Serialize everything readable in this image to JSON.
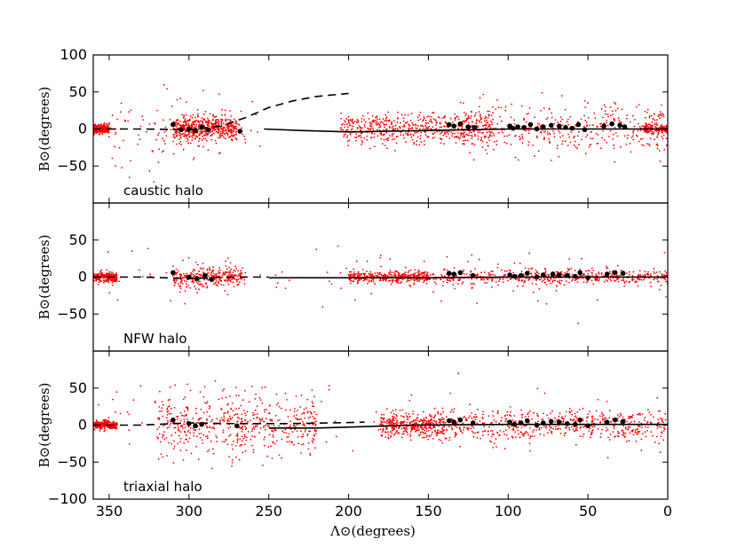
{
  "colors": {
    "sim_points": "#ff0000",
    "obs_points": "#000000",
    "background": "#ffffff",
    "axes": "#000000"
  },
  "chart_data": {
    "type": "scatter",
    "layout": "3 vertically stacked panels, shared x-axis",
    "x_axis": {
      "label": "Λ⊙(degrees)",
      "range": [
        360,
        0
      ],
      "reversed": true,
      "ticks": [
        350,
        300,
        250,
        200,
        150,
        100,
        50,
        0
      ],
      "tick_labels": [
        "350",
        "300",
        "250",
        "200",
        "150",
        "100",
        "50",
        "0"
      ]
    },
    "y_axis": {
      "label": "B⊙(degrees)",
      "range": [
        -100,
        100
      ],
      "ticks": [
        -100,
        -50,
        0,
        50,
        100
      ]
    },
    "grid": false,
    "panels": [
      {
        "label": "caustic halo",
        "ytick_labels": [
          "100",
          "50",
          "0",
          "−50"
        ],
        "ytick_values": [
          100,
          50,
          0,
          -50
        ],
        "series": [
          {
            "type": "points",
            "color": "#ff0000",
            "description_key": "sim",
            "clusters": [
              {
                "x": [
                  350,
                  362
                ],
                "y_sd": 3,
                "n": 320
              },
              {
                "x": [
                  270,
                  310
                ],
                "y_sd": 8,
                "n": 520
              },
              {
                "x": [
                  255,
                  350
                ],
                "y_sd": 25,
                "n": 120
              },
              {
                "x": [
                  110,
                  205
                ],
                "y_sd": 10,
                "n": 560
              },
              {
                "x": [
                  0,
                  130
                ],
                "y_sd": 18,
                "n": 420
              },
              {
                "x": [
                  0,
                  15
                ],
                "y_sd": 3,
                "n": 140
              }
            ]
          },
          {
            "type": "line",
            "style": "dashed",
            "points": [
              [
                360,
                0
              ],
              [
                330,
                0
              ],
              [
                300,
                -1
              ],
              [
                280,
                4
              ],
              [
                265,
                15
              ],
              [
                250,
                29
              ],
              [
                235,
                38
              ],
              [
                220,
                44
              ],
              [
                200,
                48
              ]
            ]
          },
          {
            "type": "line",
            "style": "solid",
            "points": [
              [
                253,
                0
              ],
              [
                230,
                -2
              ],
              [
                200,
                -4
              ],
              [
                150,
                -2
              ],
              [
                100,
                0
              ],
              [
                50,
                0
              ],
              [
                0,
                0
              ]
            ]
          },
          {
            "type": "points",
            "color": "#000000",
            "description_key": "obs",
            "values": [
              [
                310,
                6
              ],
              [
                305,
                -1
              ],
              [
                300,
                0
              ],
              [
                296,
                -2
              ],
              [
                292,
                3
              ],
              [
                288,
                -1
              ],
              [
                268,
                -3
              ],
              [
                137,
                6
              ],
              [
                134,
                4
              ],
              [
                130,
                7
              ],
              [
                125,
                3
              ],
              [
                121,
                2
              ],
              [
                99,
                4
              ],
              [
                97,
                1
              ],
              [
                94,
                3
              ],
              [
                90,
                2
              ],
              [
                86,
                6
              ],
              [
                82,
                0
              ],
              [
                78,
                3
              ],
              [
                73,
                5
              ],
              [
                68,
                4
              ],
              [
                64,
                2
              ],
              [
                60,
                1
              ],
              [
                56,
                6
              ],
              [
                52,
                -1
              ],
              [
                40,
                4
              ],
              [
                35,
                7
              ],
              [
                30,
                5
              ],
              [
                27,
                3
              ]
            ]
          }
        ]
      },
      {
        "label": "NFW halo",
        "ytick_labels": [
          "50",
          "0",
          "−50"
        ],
        "ytick_values": [
          50,
          0,
          -50
        ],
        "series": [
          {
            "type": "points",
            "color": "#ff0000",
            "description_key": "sim",
            "clusters": [
              {
                "x": [
                  345,
                  362
                ],
                "y_sd": 3,
                "n": 300
              },
              {
                "x": [
                  265,
                  310
                ],
                "y_sd": 7,
                "n": 300
              },
              {
                "x": [
                  150,
                  200
                ],
                "y_sd": 4,
                "n": 360
              },
              {
                "x": [
                  0,
                  150
                ],
                "y_sd": 5,
                "n": 520
              },
              {
                "x": [
                  0,
                  360
                ],
                "y_sd": 20,
                "n": 120
              }
            ]
          },
          {
            "type": "line",
            "style": "dashed",
            "points": [
              [
                360,
                0
              ],
              [
                330,
                0
              ],
              [
                300,
                -2
              ],
              [
                270,
                0
              ],
              [
                250,
                0
              ]
            ]
          },
          {
            "type": "line",
            "style": "solid",
            "points": [
              [
                250,
                -1
              ],
              [
                200,
                -1
              ],
              [
                150,
                -1
              ],
              [
                100,
                0
              ],
              [
                0,
                0
              ]
            ]
          },
          {
            "type": "points",
            "color": "#000000",
            "description_key": "obs",
            "values": [
              [
                310,
                6
              ],
              [
                300,
                0
              ],
              [
                295,
                -2
              ],
              [
                290,
                2
              ],
              [
                286,
                -3
              ],
              [
                137,
                5
              ],
              [
                134,
                4
              ],
              [
                130,
                6
              ],
              [
                122,
                2
              ],
              [
                99,
                3
              ],
              [
                96,
                1
              ],
              [
                92,
                2
              ],
              [
                88,
                5
              ],
              [
                82,
                0
              ],
              [
                78,
                3
              ],
              [
                72,
                4
              ],
              [
                68,
                3
              ],
              [
                63,
                2
              ],
              [
                58,
                1
              ],
              [
                55,
                6
              ],
              [
                50,
                -1
              ],
              [
                38,
                4
              ],
              [
                33,
                6
              ],
              [
                28,
                5
              ]
            ]
          }
        ]
      },
      {
        "label": "triaxial halo",
        "ytick_labels": [
          "50",
          "0",
          "−50",
          "−100"
        ],
        "ytick_values": [
          50,
          0,
          -50,
          -100
        ],
        "series": [
          {
            "type": "points",
            "color": "#ff0000",
            "description_key": "sim",
            "clusters": [
              {
                "x": [
                  345,
                  362
                ],
                "y_sd": 3,
                "n": 300
              },
              {
                "x": [
                  220,
                  320
                ],
                "y_sd": 20,
                "n": 520
              },
              {
                "x": [
                  140,
                  180
                ],
                "y_sd": 8,
                "n": 400
              },
              {
                "x": [
                  0,
                  140
                ],
                "y_sd": 10,
                "n": 520
              },
              {
                "x": [
                  0,
                  360
                ],
                "y_sd": 25,
                "n": 120
              }
            ]
          },
          {
            "type": "line",
            "style": "dashed",
            "points": [
              [
                360,
                0
              ],
              [
                330,
                0
              ],
              [
                300,
                3
              ],
              [
                270,
                2
              ],
              [
                240,
                2
              ],
              [
                210,
                3
              ],
              [
                190,
                4
              ]
            ]
          },
          {
            "type": "line",
            "style": "solid",
            "points": [
              [
                250,
                -4
              ],
              [
                220,
                -4
              ],
              [
                190,
                -2
              ],
              [
                160,
                0
              ],
              [
                100,
                1
              ],
              [
                0,
                1
              ]
            ]
          },
          {
            "type": "points",
            "color": "#000000",
            "description_key": "obs",
            "values": [
              [
                310,
                7
              ],
              [
                300,
                2
              ],
              [
                296,
                -1
              ],
              [
                292,
                1
              ],
              [
                270,
                -1
              ],
              [
                137,
                6
              ],
              [
                134,
                4
              ],
              [
                130,
                7
              ],
              [
                122,
                3
              ],
              [
                99,
                4
              ],
              [
                96,
                1
              ],
              [
                92,
                3
              ],
              [
                88,
                6
              ],
              [
                82,
                0
              ],
              [
                78,
                3
              ],
              [
                73,
                5
              ],
              [
                68,
                4
              ],
              [
                63,
                2
              ],
              [
                58,
                1
              ],
              [
                55,
                7
              ],
              [
                50,
                -1
              ],
              [
                38,
                4
              ],
              [
                33,
                7
              ],
              [
                28,
                5
              ]
            ]
          }
        ]
      }
    ]
  }
}
